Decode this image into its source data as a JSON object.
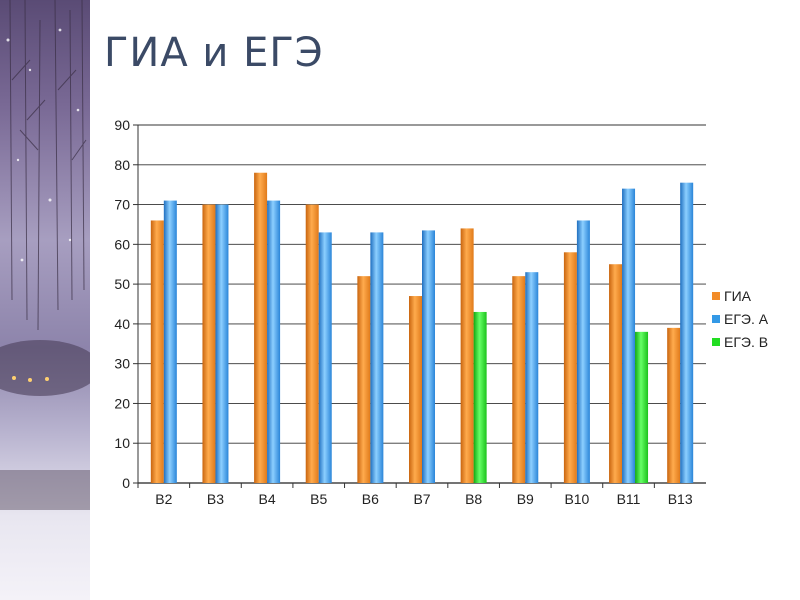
{
  "page": {
    "title": "ГИА и ЕГЭ"
  },
  "colors": {
    "ГИА": "#f28c28",
    "ЕГЭ. А": "#3399e6",
    "ЕГЭ. В": "#22dd22"
  },
  "chart_data": {
    "type": "bar",
    "title": "",
    "xlabel": "",
    "ylabel": "",
    "ylim": [
      0,
      90
    ],
    "yticks": [
      0,
      10,
      20,
      30,
      40,
      50,
      60,
      70,
      80,
      90
    ],
    "grid": true,
    "legend_position": "right",
    "categories": [
      "B2",
      "B3",
      "B4",
      "B5",
      "B6",
      "B7",
      "B8",
      "B9",
      "B10",
      "B11",
      "B13"
    ],
    "series": [
      {
        "name": "ГИА",
        "values": [
          66,
          70,
          78,
          70,
          52,
          47,
          64,
          52,
          58,
          55,
          39
        ]
      },
      {
        "name": "ЕГЭ. А",
        "values": [
          71,
          70,
          71,
          63,
          63,
          63.5,
          null,
          53,
          66,
          74,
          75.5
        ]
      },
      {
        "name": "ЕГЭ. В",
        "values": [
          null,
          null,
          null,
          null,
          null,
          null,
          43,
          null,
          null,
          38,
          null
        ]
      }
    ]
  }
}
